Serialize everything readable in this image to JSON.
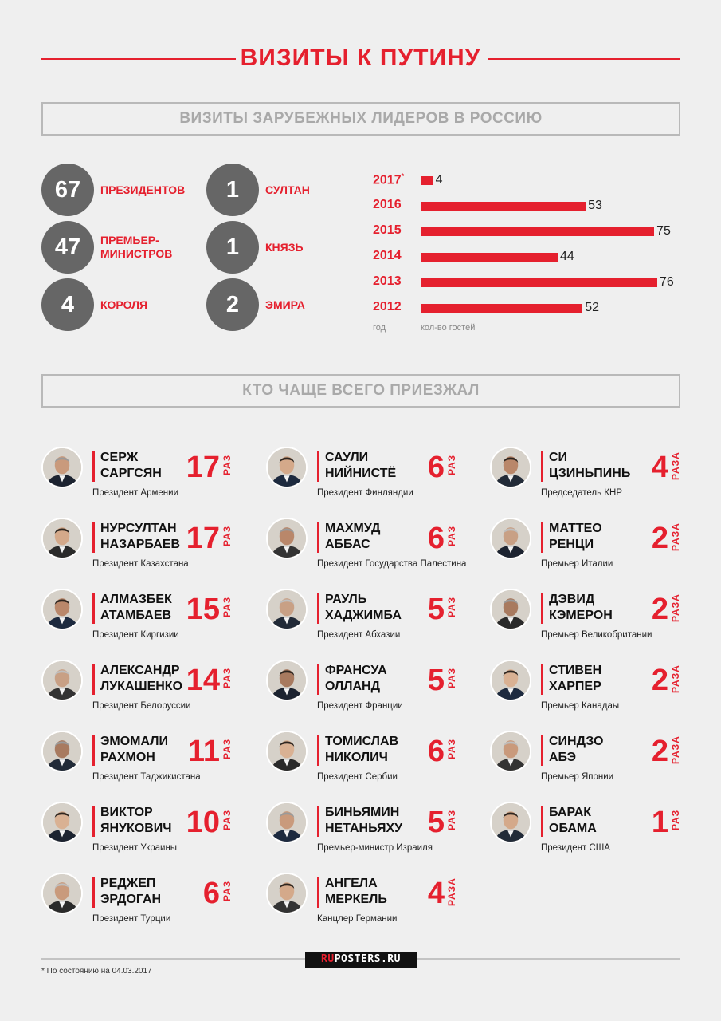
{
  "title": "ВИЗИТЫ К ПУТИНУ",
  "section1_title": "ВИЗИТЫ ЗАРУБЕЖНЫХ ЛИДЕРОВ В РОССИЮ",
  "section2_title": "КТО ЧАЩЕ ВСЕГО ПРИЕЗЖАЛ",
  "stats": [
    {
      "value": "67",
      "label": "ПРЕЗИДЕНТОВ"
    },
    {
      "value": "47",
      "label": "ПРЕМЬЕР-\nМИНИСТРОВ"
    },
    {
      "value": "4",
      "label": "КОРОЛЯ"
    },
    {
      "value": "1",
      "label": "СУЛТАН"
    },
    {
      "value": "1",
      "label": "КНЯЗЬ"
    },
    {
      "value": "2",
      "label": "ЭМИРА"
    }
  ],
  "chart_data": {
    "type": "bar",
    "orientation": "horizontal",
    "categories": [
      "2017*",
      "2016",
      "2015",
      "2014",
      "2013",
      "2012"
    ],
    "values": [
      4,
      53,
      75,
      44,
      76,
      52
    ],
    "xlabel": "кол-во гостей",
    "ylabel": "год"
  },
  "leaders": [
    {
      "name": "СЕРЖ\nСАРГСЯН",
      "role": "Президент Армении",
      "count": "17",
      "unit": "РАЗ"
    },
    {
      "name": "НУРСУЛТАН\nНАЗАРБАЕВ",
      "role": "Президент Казахстана",
      "count": "17",
      "unit": "РАЗ"
    },
    {
      "name": "АЛМАЗБЕК\nАТАМБАЕВ",
      "role": "Президент Киргизии",
      "count": "15",
      "unit": "РАЗ"
    },
    {
      "name": "АЛЕКСАНДР\nЛУКАШЕНКО",
      "role": "Президент Белоруссии",
      "count": "14",
      "unit": "РАЗ"
    },
    {
      "name": "ЭМОМАЛИ\nРАХМОН",
      "role": "Президент Таджикистана",
      "count": "11",
      "unit": "РАЗ"
    },
    {
      "name": "ВИКТОР\nЯНУКОВИЧ",
      "role": "Президент Украины",
      "count": "10",
      "unit": "РАЗ"
    },
    {
      "name": "РЕДЖЕП\nЭРДОГАН",
      "role": "Президент Турции",
      "count": "6",
      "unit": "РАЗ"
    },
    {
      "name": "САУЛИ\nНИЙНИСТЁ",
      "role": "Президент Финляндии",
      "count": "6",
      "unit": "РАЗ"
    },
    {
      "name": "МАХМУД\nАББАС",
      "role": "Президент Государства Палестина",
      "count": "6",
      "unit": "РАЗ"
    },
    {
      "name": "РАУЛЬ\nХАДЖИМБА",
      "role": "Президент Абхазии",
      "count": "5",
      "unit": "РАЗ"
    },
    {
      "name": "ФРАНСУА\nОЛЛАНД",
      "role": "Президент Франции",
      "count": "5",
      "unit": "РАЗ"
    },
    {
      "name": "ТОМИСЛАВ\nНИКОЛИЧ",
      "role": "Президент Сербии",
      "count": "6",
      "unit": "РАЗ"
    },
    {
      "name": "БИНЬЯМИН\nНЕТАНЬЯХУ",
      "role": "Премьер-министр Израиля",
      "count": "5",
      "unit": "РАЗ"
    },
    {
      "name": "АНГЕЛА\nМЕРКЕЛЬ",
      "role": "Канцлер Германии",
      "count": "4",
      "unit": "РАЗА"
    },
    {
      "name": "СИ\nЦЗИНЬПИНЬ",
      "role": "Председатель КНР",
      "count": "4",
      "unit": "РАЗА"
    },
    {
      "name": "МАТТЕО\nРЕНЦИ",
      "role": "Премьер Италии",
      "count": "2",
      "unit": "РАЗА"
    },
    {
      "name": "ДЭВИД\nКЭМЕРОН",
      "role": "Премьер Великобритании",
      "count": "2",
      "unit": "РАЗА"
    },
    {
      "name": "СТИВЕН\nХАРПЕР",
      "role": "Премьер Канадаы",
      "count": "2",
      "unit": "РАЗА"
    },
    {
      "name": "СИНДЗО\nАБЭ",
      "role": "Премьер Японии",
      "count": "2",
      "unit": "РАЗА"
    },
    {
      "name": "БАРАК\nОБАМА",
      "role": "Президент США",
      "count": "1",
      "unit": "РАЗ"
    }
  ],
  "footnote": "* По состоянию на 04.03.2017",
  "logo": {
    "part1": "RU",
    "part2": "POSTERS.RU"
  },
  "colors": {
    "accent": "#e5202e",
    "circle": "#666666",
    "background": "#efefef"
  }
}
